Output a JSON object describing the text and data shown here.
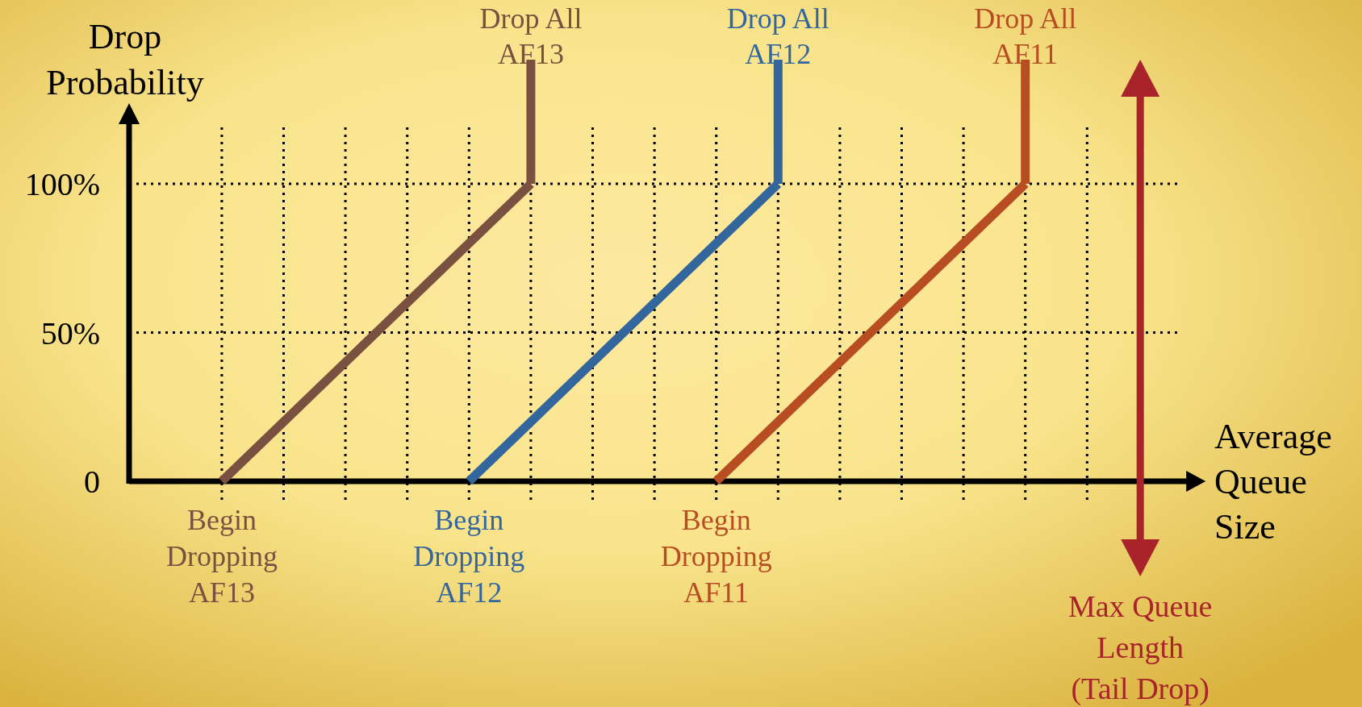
{
  "chart_data": {
    "type": "line",
    "xlabel": "Average Queue Size",
    "ylabel": "Drop Probability",
    "categories": [
      null,
      null,
      null,
      null,
      null,
      null,
      null,
      null,
      null,
      null,
      null,
      null,
      null,
      null,
      null,
      null,
      null
    ],
    "ylim": [
      0,
      100
    ],
    "yticks": [
      0,
      {
        "value": 50,
        "label": "50%"
      },
      {
        "value": 100,
        "label": "100%"
      }
    ],
    "grid": true,
    "tick_labels": "y",
    "marker": "none",
    "line_style": "solid",
    "series": [
      {
        "color": "#7a5040",
        "values": [
          null,
          0,
          20,
          40,
          60,
          80,
          100,
          null,
          null,
          null,
          null,
          null,
          null,
          null,
          null,
          null,
          null
        ]
      },
      {
        "color": "#33669c",
        "values": [
          null,
          null,
          null,
          null,
          null,
          0,
          20,
          40,
          60,
          80,
          100,
          null,
          null,
          null,
          null,
          null,
          null
        ]
      },
      {
        "color": "#b84c22",
        "values": [
          null,
          null,
          null,
          null,
          null,
          null,
          null,
          null,
          null,
          0,
          20,
          40,
          60,
          80,
          100,
          null,
          null
        ]
      }
    ],
    "annotations": [
      {
        "text": "Drop All AF13",
        "y": 100
      },
      {
        "text": "Begin Dropping AF13",
        "y": 0
      },
      {
        "text": "Drop All AF12",
        "y": 100
      },
      {
        "text": "Begin Dropping AF12",
        "y": 0
      },
      {
        "text": "Drop All AF11",
        "y": 100
      },
      {
        "text": "Begin Dropping AF11",
        "y": 0
      },
      "Max Queue Length (Tail Drop)"
    ]
  }
}
